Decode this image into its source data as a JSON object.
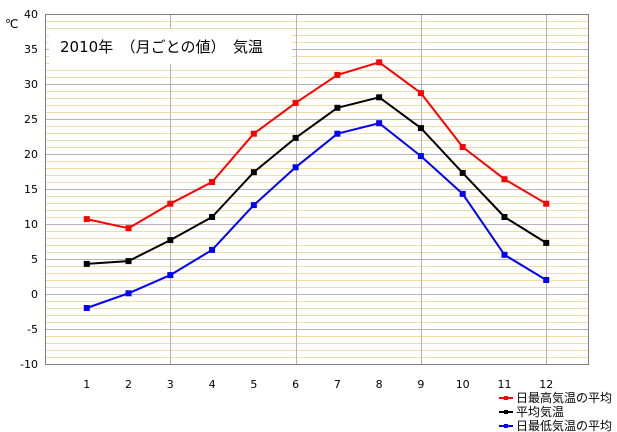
{
  "chart_data": {
    "type": "line",
    "title": "2010年　（月ごとの値）　気温",
    "xlabel": "",
    "ylabel": "℃",
    "x": [
      1,
      2,
      3,
      4,
      5,
      6,
      7,
      8,
      9,
      10,
      11,
      12
    ],
    "xlim": [
      0,
      13
    ],
    "ylim": [
      -10,
      40
    ],
    "y_ticks": [
      40,
      35,
      30,
      25,
      20,
      15,
      10,
      5,
      0,
      -5,
      -10
    ],
    "grid": true,
    "minor_grid_step": 1,
    "vertical_grid_at": [
      3,
      6,
      9,
      12
    ],
    "legend_position": "bottom-right",
    "colors": {
      "major_grid": "#b4b4b4",
      "minor_grid": "#efdca6",
      "plot_border": "#808080"
    },
    "series": [
      {
        "name": "日最高気温の平均",
        "color": "#ff0000",
        "values": [
          10.7,
          9.4,
          12.9,
          16.0,
          22.9,
          27.3,
          31.3,
          33.1,
          28.7,
          21.0,
          16.4,
          12.9
        ]
      },
      {
        "name": "平均気温",
        "color": "#000000",
        "values": [
          4.3,
          4.7,
          7.7,
          11.0,
          17.4,
          22.3,
          26.6,
          28.1,
          23.7,
          17.3,
          11.0,
          7.3
        ]
      },
      {
        "name": "日最低気温の平均",
        "color": "#0000ff",
        "values": [
          -2.0,
          0.1,
          2.7,
          6.3,
          12.7,
          18.1,
          22.9,
          24.4,
          19.7,
          14.3,
          5.6,
          2.0
        ]
      }
    ]
  }
}
